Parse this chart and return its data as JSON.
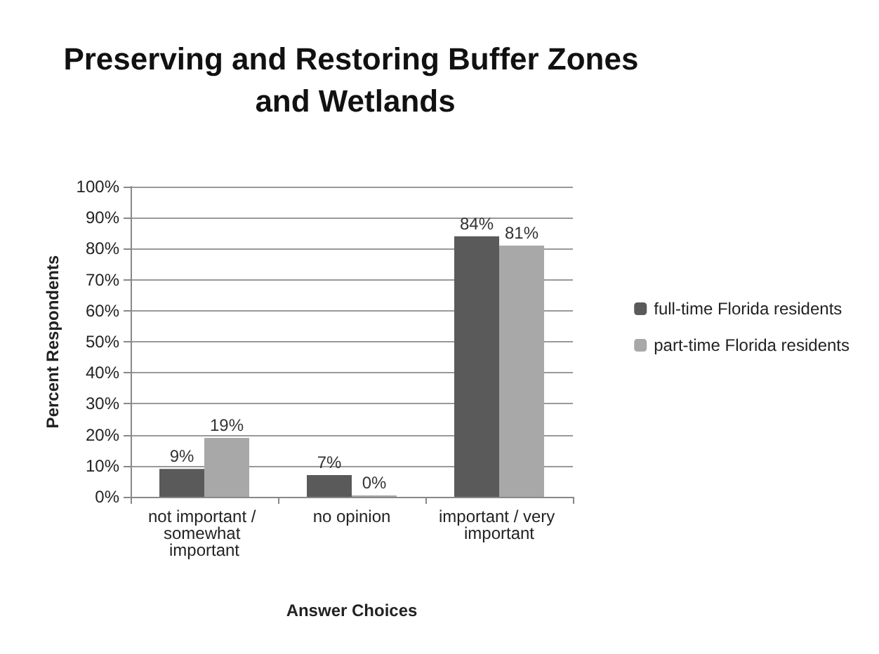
{
  "chart_data": {
    "type": "bar",
    "title": "Preserving and Restoring Buffer Zones and Wetlands",
    "xlabel": "Answer Choices",
    "ylabel": "Percent Respondents",
    "categories": [
      "not important / somewhat important",
      "no opinion",
      "important / very important"
    ],
    "series": [
      {
        "name": "full-time Florida residents",
        "color": "#5a5a5a",
        "values": [
          9,
          7,
          84
        ],
        "value_labels": [
          "9%",
          "7%",
          "84%"
        ]
      },
      {
        "name": "part-time Florida residents",
        "color": "#a8a8a8",
        "values": [
          19,
          0,
          81
        ],
        "value_labels": [
          "19%",
          "0%",
          "81%"
        ]
      }
    ],
    "ylim": [
      0,
      100
    ],
    "yticks": [
      {
        "value": 0,
        "label": "0%"
      },
      {
        "value": 10,
        "label": "10%"
      },
      {
        "value": 20,
        "label": "20%"
      },
      {
        "value": 30,
        "label": "30%"
      },
      {
        "value": 40,
        "label": "40%"
      },
      {
        "value": 50,
        "label": "50%"
      },
      {
        "value": 60,
        "label": "60%"
      },
      {
        "value": 70,
        "label": "70%"
      },
      {
        "value": 80,
        "label": "80%"
      },
      {
        "value": 90,
        "label": "90%"
      },
      {
        "value": 100,
        "label": "100%"
      }
    ],
    "grid": "y",
    "legend": "right"
  }
}
